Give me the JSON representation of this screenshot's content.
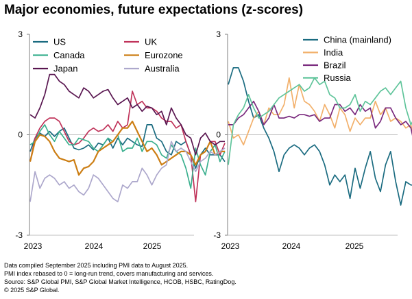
{
  "title": "Major economies, future expectations (z-scores)",
  "colors": {
    "US": "#1a6b80",
    "UK": "#c0335a",
    "Canada": "#3bb08f",
    "Eurozone": "#cc7e14",
    "Japan": "#591650",
    "Australia": "#ada8cc",
    "China (mainland)": "#1a6b80",
    "India": "#f2b06b",
    "Brazil": "#7a2a7e",
    "Russia": "#5fc49a"
  },
  "footnotes": [
    "Data compiled September 2025 including PMI data to August 2025.",
    "PMI index rebased to 0 = long-run trend, covers manufacturing and services.",
    "Source: S&P Global PMI, S&P Global Market Intelligence, HCOB, HSBC, RatingDog.",
    "© 2025 S&P Global."
  ],
  "chart_data": [
    {
      "type": "line",
      "x_start": "2023-01",
      "x_ticks": [
        "2023",
        "2024",
        "2025"
      ],
      "ylim": [
        -3,
        3
      ],
      "y_ticks": [
        "3",
        "0",
        "-3"
      ],
      "legend_columns": 2,
      "series": [
        {
          "name": "US",
          "values": [
            -0.5,
            -0.1,
            0.05,
            -0.05,
            0.1,
            -0.05,
            0.1,
            0.2,
            -0.1,
            -0.4,
            -0.45,
            -0.4,
            -0.3,
            -0.45,
            -0.25,
            -0.3,
            -0.1,
            -0.4,
            -0.1,
            -0.3,
            -0.1,
            -0.2,
            -0.3,
            -0.35,
            0.3,
            0.3,
            -0.1,
            -0.2,
            -0.5,
            -0.6,
            -0.2,
            -0.3,
            -0.2,
            -0.6,
            -1.0,
            -0.6,
            -0.4,
            -0.6,
            -0.6,
            -0.6,
            -0.8
          ]
        },
        {
          "name": "UK",
          "values": [
            -0.8,
            -0.1,
            0.2,
            0.4,
            0.5,
            0.5,
            0.4,
            0.1,
            -0.2,
            -0.3,
            -0.25,
            -0.1,
            0.1,
            0.2,
            0.1,
            0.15,
            0.3,
            0.1,
            0.4,
            0.2,
            0.3,
            1.3,
            0.9,
            1.0,
            0.8,
            0.8,
            0.7,
            0.5,
            0.4,
            0.4,
            0.2,
            0.3,
            -0.2,
            -0.6,
            -2.0,
            -0.6,
            -0.5,
            -0.2,
            -0.2,
            -0.6,
            -0.25
          ]
        },
        {
          "name": "Canada",
          "values": [
            -0.3,
            -0.2,
            0.1,
            0.3,
            0.0,
            -0.2,
            0.1,
            -0.1,
            -0.3,
            -0.3,
            -0.1,
            -0.15,
            -0.2,
            -0.4,
            -0.5,
            -0.3,
            -0.1,
            -0.2,
            0.0,
            -0.5,
            -0.4,
            -0.4,
            -0.1,
            -0.5,
            -0.2,
            -0.2,
            -0.3,
            -0.6,
            -0.7,
            -0.3,
            -0.5,
            -0.6,
            -1.0,
            -1.6,
            -0.4,
            -0.9,
            -1.2,
            -0.5,
            -0.3,
            -0.8,
            -0.5
          ]
        },
        {
          "name": "Eurozone",
          "values": [
            -0.8,
            -0.2,
            0.0,
            -0.05,
            -0.2,
            -0.5,
            -0.7,
            -0.75,
            -0.8,
            -0.75,
            -1.2,
            -1.0,
            -0.95,
            -0.8,
            -0.5,
            -0.4,
            -0.3,
            -0.2,
            0.0,
            0.2,
            0.2,
            0.4,
            0.1,
            -0.2,
            -0.5,
            -0.4,
            -0.6,
            -0.9,
            -0.8,
            -0.7,
            -0.6,
            -0.5,
            -0.5,
            -0.6,
            -0.9,
            -0.6,
            -0.5,
            -0.2,
            -0.6,
            -0.5,
            -0.5
          ]
        },
        {
          "name": "Japan",
          "values": [
            0.6,
            0.5,
            0.8,
            1.2,
            1.8,
            1.8,
            1.6,
            1.5,
            1.3,
            1.2,
            1.1,
            1.4,
            1.3,
            1.1,
            1.2,
            1.3,
            1.35,
            1.1,
            0.9,
            1.0,
            1.1,
            0.8,
            0.9,
            0.7,
            0.85,
            0.8,
            0.6,
            0.7,
            0.3,
            0.8,
            0.5,
            0.3,
            0.0,
            -0.1,
            -0.6,
            -0.1,
            0.05,
            -0.2,
            -0.3,
            -0.2,
            -0.2
          ]
        },
        {
          "name": "Australia",
          "values": [
            -2.0,
            -1.1,
            -1.6,
            -1.3,
            -1.2,
            -1.3,
            -1.5,
            -1.4,
            -1.6,
            -1.5,
            -1.7,
            -1.8,
            -1.6,
            -1.2,
            -1.3,
            -1.5,
            -1.7,
            -1.9,
            -2.0,
            -1.5,
            -1.6,
            -1.4,
            -1.4,
            -1.0,
            -1.2,
            -1.5,
            -1.2,
            -1.0,
            -0.9,
            -0.2,
            -0.5,
            -0.4,
            -0.5,
            -0.8,
            -1.1,
            -0.8,
            -0.7,
            -0.5,
            -0.6,
            -0.5,
            -0.4
          ]
        }
      ]
    },
    {
      "type": "line",
      "x_start": "2023-01",
      "x_ticks": [
        "2023",
        "2024",
        "2025"
      ],
      "ylim": [
        -3,
        3
      ],
      "y_ticks": [
        "3",
        "0",
        "-3"
      ],
      "legend_columns": 1,
      "series": [
        {
          "name": "China (mainland)",
          "values": [
            1.5,
            2.0,
            2.0,
            1.6,
            1.0,
            0.5,
            0.6,
            0.2,
            -0.1,
            -0.5,
            -1.1,
            -0.6,
            -0.4,
            -0.3,
            -0.4,
            -0.6,
            -0.4,
            -0.3,
            -0.5,
            -0.9,
            -1.5,
            -1.2,
            -1.4,
            -1.2,
            -1.9,
            -1.0,
            -1.6,
            -1.0,
            -0.5,
            -1.3,
            -1.7,
            -0.9,
            -0.5,
            -1.4,
            -2.1,
            -1.4,
            -1.5,
            -1.5,
            -1.4,
            -1.3,
            -1.3
          ]
        },
        {
          "name": "India",
          "values": [
            0.4,
            -0.1,
            0.0,
            -0.3,
            0.1,
            0.5,
            0.7,
            0.3,
            0.8,
            0.6,
            0.6,
            0.9,
            1.7,
            0.8,
            1.5,
            1.0,
            0.9,
            0.7,
            0.4,
            0.9,
            0.6,
            0.2,
            0.8,
            0.6,
            0.1,
            0.5,
            0.3,
            0.5,
            0.5,
            1.0,
            0.6,
            0.8,
            0.4,
            0.5,
            0.4,
            0.2,
            0.3,
            -0.3,
            0.1,
            0.1,
            0.1
          ]
        },
        {
          "name": "Brazil",
          "values": [
            0.3,
            0.3,
            0.5,
            0.6,
            0.8,
            1.0,
            0.7,
            0.3,
            0.5,
            0.9,
            0.5,
            0.5,
            0.55,
            0.5,
            0.6,
            0.6,
            0.55,
            0.6,
            0.4,
            0.5,
            0.5,
            0.9,
            0.9,
            0.7,
            0.8,
            0.6,
            0.9,
            0.7,
            0.8,
            0.2,
            0.4,
            0.8,
            0.8,
            0.5,
            0.3,
            0.4,
            0.2,
            -0.5,
            -0.9,
            -0.7,
            -0.6
          ]
        },
        {
          "name": "Russia",
          "values": [
            -0.9,
            0.3,
            0.6,
            0.8,
            1.2,
            0.8,
            0.5,
            0.6,
            0.7,
            0.9,
            1.1,
            1.2,
            1.3,
            1.4,
            1.5,
            1.3,
            1.4,
            1.7,
            1.5,
            1.6,
            1.2,
            1.1,
            0.8,
            0.8,
            0.9,
            1.2,
            0.7,
            1.0,
            0.9,
            1.1,
            1.3,
            1.4,
            1.2,
            1.4,
            1.6,
            0.8,
            0.3,
            0.6,
            0.6,
            0.4,
            0.4
          ]
        }
      ]
    }
  ]
}
